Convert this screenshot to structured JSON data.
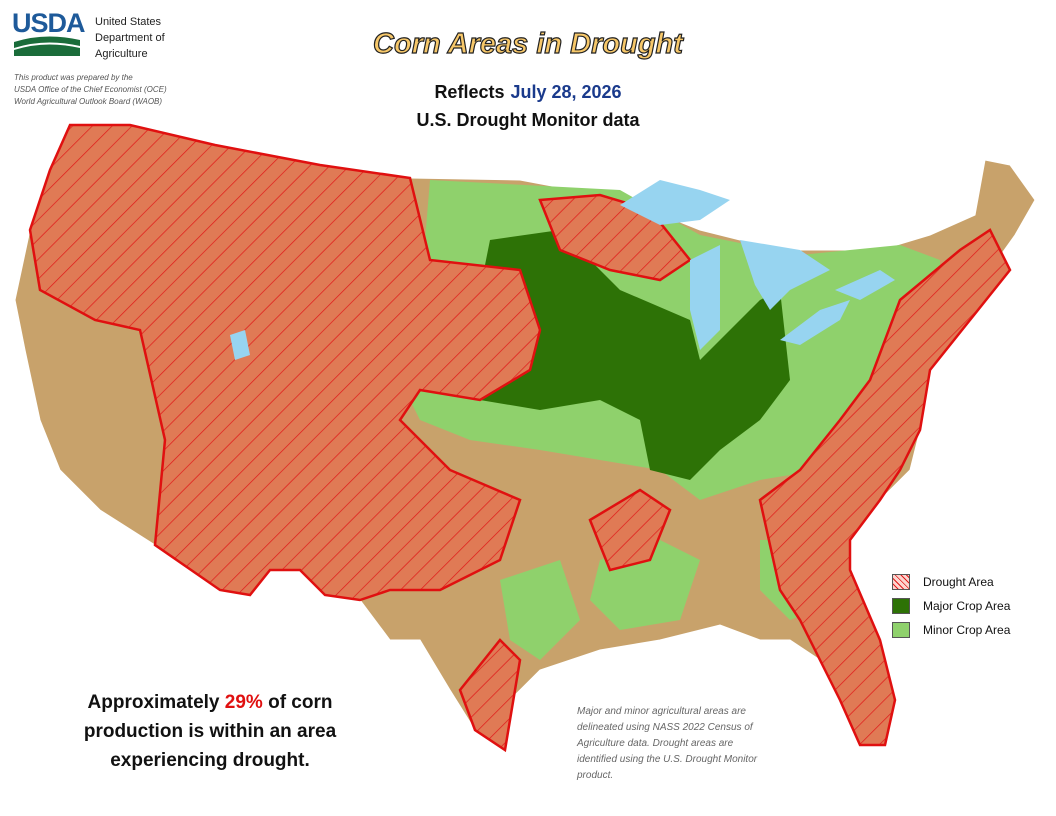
{
  "header": {
    "agency": "USDA",
    "department": [
      "United States",
      "Department of",
      "Agriculture"
    ],
    "credit": [
      "This product was prepared by the",
      "USDA Office of the Chief Economist (OCE)",
      "World Agricultural Outlook Board (WAOB)"
    ]
  },
  "title": "Corn Areas in Drought",
  "subtitle": {
    "prefix": "Reflects",
    "date": "July 28, 2026",
    "source": "U.S. Drought Monitor data"
  },
  "legend": [
    "Drought Area",
    "Major Crop Area",
    "Minor Crop Area"
  ],
  "summary": {
    "before": "Approximately",
    "highlight": "29%",
    "lines": [
      "of corn",
      "production is within an area",
      "experiencing drought."
    ]
  },
  "note": [
    "Major and minor agricultural areas are",
    "delineated using NASS 2022 Census of",
    "Agriculture data.  Drought areas are",
    "identified using the U.S. Drought Monitor",
    "product."
  ]
}
